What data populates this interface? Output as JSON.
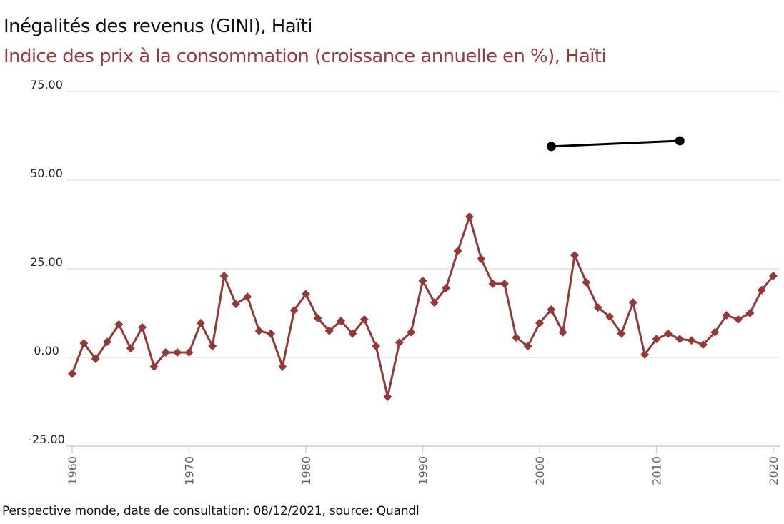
{
  "chart_data": {
    "type": "line",
    "title": "Inégalités des revenus (GINI), Haïti",
    "subtitle": "Indice des prix à la consommation (croissance annuelle en %), Haïti",
    "xlabel": "",
    "ylabel": "",
    "ylim": [
      -25,
      75
    ],
    "xlim": [
      1960,
      2020
    ],
    "y_ticks": [
      "-25.00",
      "0.00",
      "25.00",
      "50.00",
      "75.00"
    ],
    "y_tick_values": [
      -25,
      0,
      25,
      50,
      75
    ],
    "x_ticks": [
      "1960",
      "1970",
      "1980",
      "1990",
      "2000",
      "2010",
      "2020"
    ],
    "x_tick_values": [
      1960,
      1970,
      1980,
      1990,
      2000,
      2010,
      2020
    ],
    "grid": true,
    "legend": "none",
    "series": [
      {
        "name": "Inégalités des revenus (GINI), Haïti",
        "color": "#000000",
        "marker": "circle",
        "x": [
          2001,
          2012
        ],
        "values": [
          59.5,
          61.1
        ]
      },
      {
        "name": "Indice des prix à la consommation (croissance annuelle en %), Haïti",
        "color": "#943838",
        "marker": "diamond",
        "x": [
          1960,
          1961,
          1962,
          1963,
          1964,
          1965,
          1966,
          1967,
          1968,
          1969,
          1970,
          1971,
          1972,
          1973,
          1974,
          1975,
          1976,
          1977,
          1978,
          1979,
          1980,
          1981,
          1982,
          1983,
          1984,
          1985,
          1986,
          1987,
          1988,
          1989,
          1990,
          1991,
          1992,
          1993,
          1994,
          1995,
          1996,
          1997,
          1998,
          1999,
          2000,
          2001,
          2002,
          2003,
          2004,
          2005,
          2006,
          2007,
          2008,
          2009,
          2010,
          2011,
          2012,
          2013,
          2014,
          2015,
          2016,
          2017,
          2018,
          2019,
          2020
        ],
        "values": [
          -4.6,
          4.0,
          -0.4,
          4.4,
          9.3,
          2.6,
          8.5,
          -2.6,
          1.4,
          1.4,
          1.4,
          9.7,
          3.2,
          23.0,
          15.1,
          17.1,
          7.5,
          6.7,
          -2.6,
          13.3,
          17.9,
          11.1,
          7.5,
          10.3,
          6.7,
          10.7,
          3.2,
          -11.1,
          4.2,
          7.1,
          21.6,
          15.5,
          19.6,
          30.0,
          39.7,
          27.8,
          20.8,
          20.8,
          5.6,
          3.2,
          9.7,
          13.5,
          7.1,
          28.8,
          21.2,
          14.1,
          11.5,
          6.7,
          15.5,
          0.8,
          5.2,
          6.7,
          5.2,
          4.8,
          3.6,
          7.1,
          11.9,
          10.7,
          12.5,
          19.0,
          23.0
        ]
      }
    ]
  },
  "footer": "Perspective monde, date de consultation: 08/12/2021, source: Quandl"
}
